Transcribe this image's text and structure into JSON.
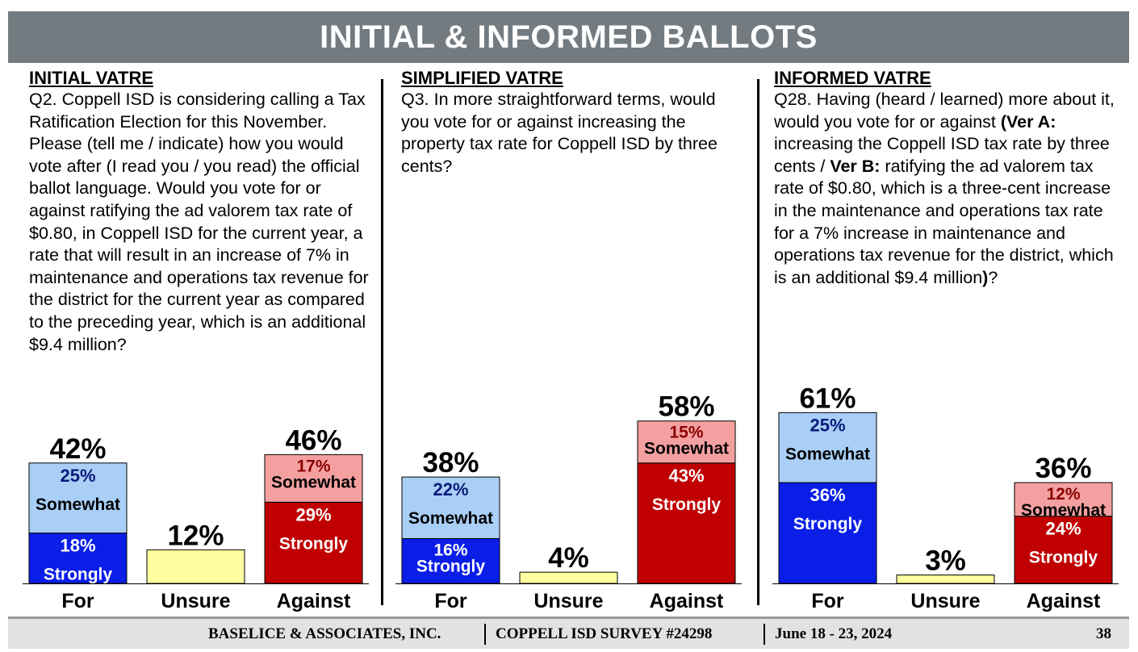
{
  "title": "INITIAL & INFORMED BALLOTS",
  "panels": [
    {
      "heading": "INITIAL VATRE",
      "question": "Q2. Coppell ISD is considering calling a Tax Ratification Election for this November. Please (tell me / indicate) how you would vote after (I read you / you read) the official ballot language. Would you vote for or against ratifying the ad valorem tax rate of $0.80, in Coppell ISD for the current year, a rate that will result in an increase of 7% in maintenance and operations tax revenue for the district for the current year as compared to the preceding year, which is an additional $9.4 million?"
    },
    {
      "heading": "SIMPLIFIED VATRE",
      "question": "Q3. In more straightforward terms, would you vote for or against increasing the property tax rate for Coppell ISD by three cents?"
    },
    {
      "heading": "INFORMED VATRE",
      "question_parts": [
        {
          "text": "Q28. Having (heard / learned) more about it, would you vote for or against ",
          "bold": false
        },
        {
          "text": "(Ver A:",
          "bold": true
        },
        {
          "text": " increasing the Coppell ISD tax rate by three cents / ",
          "bold": false
        },
        {
          "text": "Ver B:",
          "bold": true
        },
        {
          "text": " ratifying the ad valorem tax rate of $0.80, which is a three-cent increase in the maintenance and operations tax rate for a 7% increase in maintenance and operations tax revenue for the district, which is an additional $9.4 million",
          "bold": false
        },
        {
          "text": ")",
          "bold": true
        },
        {
          "text": "?",
          "bold": false
        }
      ]
    }
  ],
  "colors": {
    "strongly_for": "#0A1EE8",
    "somewhat_for": "#A9CFF6",
    "unsure": "#FFFFA0",
    "strongly_against": "#C00000",
    "somewhat_against": "#F4A0A0",
    "title_bar": "#737B80"
  },
  "chart_data": [
    {
      "type": "bar",
      "stacked": true,
      "categories": [
        "For",
        "Unsure",
        "Against"
      ],
      "totals": [
        "42%",
        "12%",
        "46%"
      ],
      "segments": [
        [
          {
            "value": 18,
            "pct_label": "18%",
            "label": "Strongly",
            "color": "#0A1EE8"
          },
          {
            "value": 25,
            "pct_label": "25%",
            "label": "Somewhat",
            "color": "#A9CFF6"
          }
        ],
        [
          {
            "value": 12,
            "color": "#FFFFA0"
          }
        ],
        [
          {
            "value": 29,
            "pct_label": "29%",
            "label": "Strongly",
            "color": "#C00000"
          },
          {
            "value": 17,
            "pct_label": "17%",
            "label": "Somewhat",
            "color": "#F4A0A0"
          }
        ]
      ]
    },
    {
      "type": "bar",
      "stacked": true,
      "categories": [
        "For",
        "Unsure",
        "Against"
      ],
      "totals": [
        "38%",
        "4%",
        "58%"
      ],
      "segments": [
        [
          {
            "value": 16,
            "pct_label": "16%",
            "label": "Strongly",
            "color": "#0A1EE8"
          },
          {
            "value": 22,
            "pct_label": "22%",
            "label": "Somewhat",
            "color": "#A9CFF6"
          }
        ],
        [
          {
            "value": 4,
            "color": "#FFFFA0"
          }
        ],
        [
          {
            "value": 43,
            "pct_label": "43%",
            "label": "Strongly",
            "color": "#C00000"
          },
          {
            "value": 15,
            "pct_label": "15%",
            "label": "Somewhat",
            "color": "#F4A0A0"
          }
        ]
      ]
    },
    {
      "type": "bar",
      "stacked": true,
      "categories": [
        "For",
        "Unsure",
        "Against"
      ],
      "totals": [
        "61%",
        "3%",
        "36%"
      ],
      "segments": [
        [
          {
            "value": 36,
            "pct_label": "36%",
            "label": "Strongly",
            "color": "#0A1EE8"
          },
          {
            "value": 25,
            "pct_label": "25%",
            "label": "Somewhat",
            "color": "#A9CFF6"
          }
        ],
        [
          {
            "value": 3,
            "color": "#FFFFA0"
          }
        ],
        [
          {
            "value": 24,
            "pct_label": "24%",
            "label": "Strongly",
            "color": "#C00000"
          },
          {
            "value": 12,
            "pct_label": "12%",
            "label": "Somewhat",
            "color": "#F4A0A0"
          }
        ]
      ]
    }
  ],
  "footer": {
    "company": "BASELICE & ASSOCIATES, INC.",
    "survey": "COPPELL ISD SURVEY  #24298",
    "dates": "June 18 - 23, 2024",
    "page": "38"
  }
}
